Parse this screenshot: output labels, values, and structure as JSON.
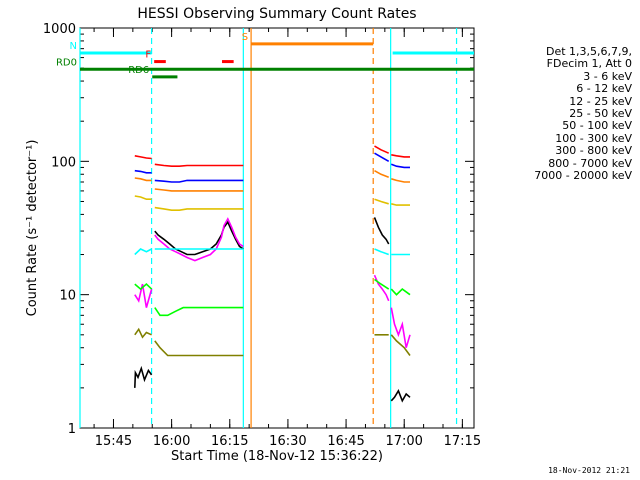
{
  "chart_data": {
    "type": "line",
    "title": "HESSI Observing Summary Count Rates",
    "xlabel": "Start Time (18-Nov-12 15:36:22)",
    "ylabel": "Count Rate (s⁻¹ detector⁻¹)",
    "yscale": "log",
    "ylim": [
      1,
      1000
    ],
    "xlim": [
      "15:36:22",
      "17:18:00"
    ],
    "x_ticks": [
      "15:45",
      "16:00",
      "16:15",
      "16:30",
      "16:45",
      "17:00",
      "17:15"
    ],
    "y_ticks": [
      "1",
      "10",
      "100",
      "1000"
    ],
    "legend_header": [
      "Det 1,3,5,6,7,9,",
      "FDecim 1, Att 0"
    ],
    "series": [
      {
        "name": "3 - 6 keV",
        "color": "#000000",
        "segments": [
          {
            "x": [
              "15:50:30",
              "15:50:40",
              "15:51:20",
              "15:52:10",
              "15:53:00",
              "15:54:00",
              "15:54:50"
            ],
            "y": [
              2.0,
              2.6,
              2.4,
              2.8,
              2.3,
              2.7,
              2.5
            ]
          },
          {
            "x": [
              "15:55:40",
              "15:56:30",
              "15:58:00",
              "15:59:30",
              "16:01:00",
              "16:02:30",
              "16:04:00",
              "16:06:00",
              "16:08:00",
              "16:10:00",
              "16:11:30",
              "16:12:50",
              "16:13:30",
              "16:14:30",
              "16:15:30",
              "16:16:30",
              "16:17:30",
              "16:18:30"
            ],
            "y": [
              30,
              28,
              26,
              24,
              22,
              21,
              20,
              20,
              21,
              22,
              24,
              28,
              32,
              35,
              30,
              26,
              23,
              22
            ]
          },
          {
            "x": [
              "16:52:20",
              "16:53:20",
              "16:54:20",
              "16:55:20",
              "16:56:00"
            ],
            "y": [
              38,
              32,
              28,
              26,
              24
            ]
          },
          {
            "x": [
              "16:56:40",
              "16:57:30",
              "16:58:30",
              "16:59:30",
              "17:00:30",
              "17:01:30"
            ],
            "y": [
              1.6,
              1.7,
              1.9,
              1.6,
              1.8,
              1.7
            ]
          }
        ]
      },
      {
        "name": "6 - 12 keV",
        "color": "#ff00ff",
        "segments": [
          {
            "x": [
              "15:50:30",
              "15:51:30",
              "15:52:30",
              "15:53:30",
              "15:54:50"
            ],
            "y": [
              10,
              9,
              12,
              8,
              11
            ]
          },
          {
            "x": [
              "15:55:40",
              "15:56:30",
              "15:58:00",
              "15:59:30",
              "16:01:00",
              "16:02:30",
              "16:04:00",
              "16:06:00",
              "16:08:00",
              "16:10:00",
              "16:11:30",
              "16:12:50",
              "16:13:30",
              "16:14:30",
              "16:15:30",
              "16:16:30",
              "16:17:30",
              "16:18:30"
            ],
            "y": [
              28,
              26,
              24,
              22,
              21,
              20,
              19,
              18,
              19,
              20,
              22,
              27,
              33,
              37,
              32,
              27,
              24,
              23
            ]
          },
          {
            "x": [
              "16:52:20",
              "16:53:20",
              "16:54:20",
              "16:55:20",
              "16:56:00"
            ],
            "y": [
              14,
              12,
              11,
              10,
              9
            ]
          },
          {
            "x": [
              "16:56:40",
              "16:57:30",
              "16:58:30",
              "16:59:30",
              "17:00:30",
              "17:01:30"
            ],
            "y": [
              8,
              6,
              5,
              6,
              4,
              5
            ]
          }
        ]
      },
      {
        "name": "12 - 25 keV",
        "color": "#00ff00",
        "segments": [
          {
            "x": [
              "15:50:30",
              "15:52:00",
              "15:53:30",
              "15:54:50"
            ],
            "y": [
              12,
              11,
              12,
              11
            ]
          },
          {
            "x": [
              "15:55:40",
              "15:57:00",
              "15:59:00",
              "16:01:00",
              "16:03:00",
              "16:05:00",
              "16:07:00",
              "16:09:00",
              "16:11:00",
              "16:13:00",
              "16:15:00",
              "16:17:00",
              "16:18:30"
            ],
            "y": [
              8,
              7,
              7,
              7.5,
              8,
              8,
              8,
              8,
              8,
              8,
              8,
              8,
              8
            ]
          },
          {
            "x": [
              "16:52:20",
              "16:54:00",
              "16:56:00"
            ],
            "y": [
              13,
              12,
              11
            ]
          },
          {
            "x": [
              "16:56:40",
              "16:58:00",
              "16:59:30",
              "17:01:30"
            ],
            "y": [
              11,
              10,
              11,
              10
            ]
          }
        ]
      },
      {
        "name": "25 - 50 keV",
        "color": "#00ffff",
        "segments": [
          {
            "x": [
              "15:50:30",
              "15:52:00",
              "15:53:30",
              "15:54:50"
            ],
            "y": [
              20,
              22,
              21,
              22
            ]
          },
          {
            "x": [
              "15:55:40",
              "15:58:00",
              "16:00:00",
              "16:02:00",
              "16:04:00",
              "16:06:00",
              "16:08:00",
              "16:10:00",
              "16:12:00",
              "16:14:00",
              "16:16:00",
              "16:18:30"
            ],
            "y": [
              22,
              22,
              22,
              22,
              22,
              22,
              22,
              22,
              22,
              22,
              22,
              22
            ]
          },
          {
            "x": [
              "16:52:20",
              "16:54:00",
              "16:56:00"
            ],
            "y": [
              22,
              21,
              20
            ]
          },
          {
            "x": [
              "16:56:40",
              "16:58:00",
              "17:00:00",
              "17:01:30"
            ],
            "y": [
              20,
              20,
              20,
              20
            ]
          }
        ]
      },
      {
        "name": "50 - 100 keV",
        "color": "#e0c000",
        "segments": [
          {
            "x": [
              "15:50:30",
              "15:52:00",
              "15:53:30",
              "15:54:50"
            ],
            "y": [
              55,
              54,
              52,
              52
            ]
          },
          {
            "x": [
              "15:55:40",
              "15:58:00",
              "16:00:00",
              "16:02:00",
              "16:04:00",
              "16:06:00",
              "16:08:00",
              "16:10:00",
              "16:12:00",
              "16:14:00",
              "16:16:00",
              "16:18:30"
            ],
            "y": [
              45,
              44,
              43,
              43,
              44,
              44,
              44,
              44,
              44,
              44,
              44,
              44
            ]
          },
          {
            "x": [
              "16:52:20",
              "16:54:00",
              "16:56:00"
            ],
            "y": [
              52,
              50,
              48
            ]
          },
          {
            "x": [
              "16:56:40",
              "16:58:00",
              "17:00:00",
              "17:01:30"
            ],
            "y": [
              48,
              47,
              47,
              47
            ]
          }
        ]
      },
      {
        "name": "100 - 300 keV",
        "color": "#ff0000",
        "segments": [
          {
            "x": [
              "15:50:30",
              "15:52:00",
              "15:53:30",
              "15:54:50"
            ],
            "y": [
              110,
              108,
              106,
              105
            ]
          },
          {
            "x": [
              "15:55:40",
              "15:58:00",
              "16:00:00",
              "16:02:00",
              "16:04:00",
              "16:06:00",
              "16:08:00",
              "16:10:00",
              "16:12:00",
              "16:14:00",
              "16:16:00",
              "16:18:30"
            ],
            "y": [
              95,
              93,
              92,
              92,
              93,
              93,
              93,
              93,
              93,
              93,
              93,
              93
            ]
          },
          {
            "x": [
              "16:52:20",
              "16:54:00",
              "16:56:00"
            ],
            "y": [
              130,
              122,
              115
            ]
          },
          {
            "x": [
              "16:56:40",
              "16:58:00",
              "17:00:00",
              "17:01:30"
            ],
            "y": [
              112,
              110,
              108,
              108
            ]
          }
        ]
      },
      {
        "name": "300 - 800 keV",
        "color": "#0000ff",
        "segments": [
          {
            "x": [
              "15:50:30",
              "15:52:00",
              "15:53:30",
              "15:54:50"
            ],
            "y": [
              85,
              84,
              82,
              82
            ]
          },
          {
            "x": [
              "15:55:40",
              "15:58:00",
              "16:00:00",
              "16:02:00",
              "16:04:00",
              "16:06:00",
              "16:08:00",
              "16:10:00",
              "16:12:00",
              "16:14:00",
              "16:16:00",
              "16:18:30"
            ],
            "y": [
              72,
              71,
              70,
              70,
              72,
              72,
              72,
              72,
              72,
              72,
              72,
              72
            ]
          },
          {
            "x": [
              "16:52:20",
              "16:54:00",
              "16:56:00"
            ],
            "y": [
              115,
              108,
              100
            ]
          },
          {
            "x": [
              "16:56:40",
              "16:58:00",
              "17:00:00",
              "17:01:30"
            ],
            "y": [
              95,
              92,
              90,
              90
            ]
          }
        ]
      },
      {
        "name": "800 - 7000 keV",
        "color": "#ff8000",
        "segments": [
          {
            "x": [
              "15:50:30",
              "15:52:00",
              "15:53:30",
              "15:54:50"
            ],
            "y": [
              75,
              74,
              72,
              72
            ]
          },
          {
            "x": [
              "15:55:40",
              "15:58:00",
              "16:00:00",
              "16:02:00",
              "16:04:00",
              "16:06:00",
              "16:08:00",
              "16:10:00",
              "16:12:00",
              "16:14:00",
              "16:16:00",
              "16:18:30"
            ],
            "y": [
              62,
              61,
              60,
              60,
              60,
              60,
              60,
              60,
              60,
              60,
              60,
              60
            ]
          },
          {
            "x": [
              "16:52:20",
              "16:54:00",
              "16:56:00"
            ],
            "y": [
              85,
              80,
              76
            ]
          },
          {
            "x": [
              "16:56:40",
              "16:58:00",
              "17:00:00",
              "17:01:30"
            ],
            "y": [
              74,
              72,
              70,
              70
            ]
          }
        ]
      },
      {
        "name": "7000 - 20000 keV",
        "color": "#808000",
        "segments": [
          {
            "x": [
              "15:50:30",
              "15:51:30",
              "15:52:30",
              "15:53:30",
              "15:54:50"
            ],
            "y": [
              5,
              5.5,
              4.8,
              5.2,
              5
            ]
          },
          {
            "x": [
              "15:55:40",
              "15:57:00",
              "15:59:00",
              "16:01:00",
              "16:03:00",
              "16:05:00",
              "16:07:00",
              "16:09:00",
              "16:11:00",
              "16:13:00",
              "16:15:00",
              "16:17:00",
              "16:18:30"
            ],
            "y": [
              4.5,
              4,
              3.5,
              3.5,
              3.5,
              3.5,
              3.5,
              3.5,
              3.5,
              3.5,
              3.5,
              3.5,
              3.5
            ]
          },
          {
            "x": [
              "16:52:20",
              "16:54:00",
              "16:56:00"
            ],
            "y": [
              5,
              5,
              5
            ]
          },
          {
            "x": [
              "16:56:40",
              "16:58:00",
              "17:00:00",
              "17:01:30"
            ],
            "y": [
              5,
              4.5,
              4,
              3.5
            ]
          }
        ]
      }
    ],
    "flag_bars": [
      {
        "label": "N",
        "color": "#00ffff",
        "x": [
          "15:36:22",
          "15:54:50"
        ],
        "y": 650
      },
      {
        "label": "",
        "color": "#00ffff",
        "x": [
          "16:57:00",
          "17:18:00"
        ],
        "y": 650
      },
      {
        "label": "F",
        "color": "#ff0000",
        "x": [
          "15:55:30",
          "15:58:30"
        ],
        "y": 560
      },
      {
        "label": "",
        "color": "#ff0000",
        "x": [
          "16:13:00",
          "16:16:00"
        ],
        "y": 560
      },
      {
        "label": "RD0",
        "color": "#008000",
        "x": [
          "15:36:22",
          "17:18:00"
        ],
        "y": 490
      },
      {
        "label": "RD6",
        "color": "#008000",
        "x": [
          "15:55:00",
          "16:01:30"
        ],
        "y": 430
      },
      {
        "label": "S",
        "color": "#ff8000",
        "x": [
          "16:20:30",
          "16:52:00"
        ],
        "y": 760
      }
    ],
    "vertical_lines": [
      {
        "x": "15:36:22",
        "color": "#00ffff",
        "style": "solid"
      },
      {
        "x": "15:54:50",
        "color": "#00ffff",
        "style": "dashed"
      },
      {
        "x": "16:18:30",
        "color": "#00ffff",
        "style": "solid"
      },
      {
        "x": "16:20:30",
        "color": "#ff8000",
        "style": "solid"
      },
      {
        "x": "16:52:00",
        "color": "#ff8000",
        "style": "dashed"
      },
      {
        "x": "16:56:30",
        "color": "#00ffff",
        "style": "solid"
      },
      {
        "x": "17:13:30",
        "color": "#00ffff",
        "style": "dashed"
      }
    ],
    "grid": false,
    "legend_position": "right"
  },
  "timestamp": "18-Nov-2012 21:21"
}
